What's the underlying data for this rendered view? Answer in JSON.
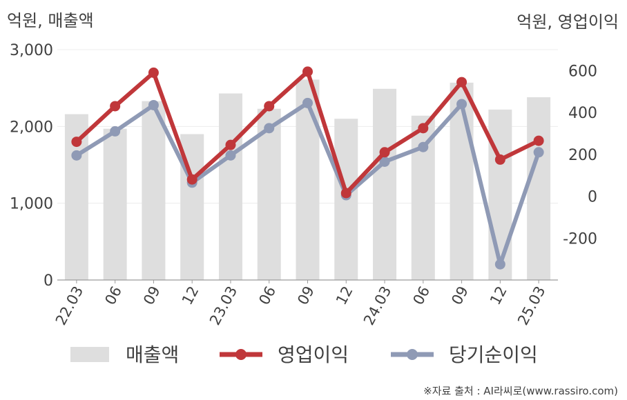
{
  "chart_data": {
    "type": "bar+line",
    "left_axis_label": "억원, 매출액",
    "right_axis_label": "억원, 영업이익",
    "categories": [
      "22.03",
      "06",
      "09",
      "12",
      "23.03",
      "06",
      "09",
      "12",
      "24.03",
      "06",
      "09",
      "12",
      "25.03"
    ],
    "left_ylim": [
      0,
      3000
    ],
    "left_ticks": [
      "0",
      "1,000",
      "2,000",
      "3,000"
    ],
    "right_ylim": [
      -400,
      700
    ],
    "right_ticks": [
      "-200",
      "0",
      "200",
      "400",
      "600"
    ],
    "series": [
      {
        "name": "매출액",
        "type": "bar",
        "axis": "left",
        "color": "#dedede",
        "values": [
          2160,
          1970,
          2330,
          1900,
          2430,
          2230,
          2610,
          2100,
          2490,
          2140,
          2570,
          2220,
          2380
        ]
      },
      {
        "name": "영업이익",
        "type": "line",
        "axis": "right",
        "color": "#c0373a",
        "values": [
          260,
          430,
          590,
          80,
          245,
          430,
          595,
          15,
          210,
          325,
          545,
          175,
          265
        ]
      },
      {
        "name": "당기순이익",
        "type": "line",
        "axis": "right",
        "color": "#8f9ab5",
        "values": [
          195,
          310,
          435,
          65,
          195,
          325,
          445,
          5,
          165,
          235,
          440,
          -325,
          210
        ]
      }
    ],
    "legend_position": "bottom",
    "grid": true
  },
  "source": "※자료 출처 : AI라씨로(www.rassiro.com)"
}
